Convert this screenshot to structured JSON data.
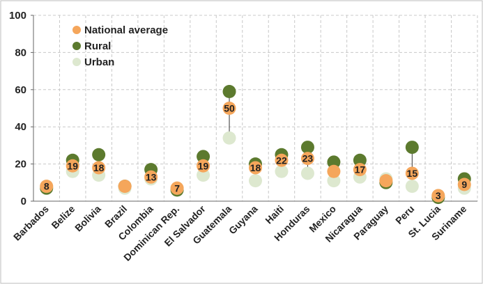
{
  "chart_data": {
    "type": "scatter",
    "categories": [
      "Barbados",
      "Belize",
      "Bolivia",
      "Brazil",
      "Colombia",
      "Dominican Rep.",
      "El Salvador",
      "Guatemala",
      "Guyana",
      "Haiti",
      "Honduras",
      "Mexico",
      "Nicaragua",
      "Paraguay",
      "Peru",
      "St. Lucia",
      "Suriname"
    ],
    "series": [
      {
        "name": "National average",
        "color": "#f5a65b",
        "values": [
          8,
          19,
          18,
          8,
          13,
          7,
          19,
          50,
          18,
          22,
          23,
          16,
          17,
          11,
          15,
          3,
          9
        ]
      },
      {
        "name": "Rural",
        "color": "#5c7a2e",
        "values": [
          7,
          22,
          25,
          8,
          17,
          6,
          24,
          59,
          20,
          25,
          29,
          21,
          22,
          10,
          29,
          2,
          12
        ]
      },
      {
        "name": "Urban",
        "color": "#dde8cf",
        "values": [
          8,
          16,
          14,
          7,
          12,
          7,
          14,
          34,
          11,
          16,
          15,
          11,
          13,
          12,
          8,
          3,
          7
        ]
      }
    ],
    "data_labels": [
      "8",
      "19",
      "18",
      "",
      "13",
      "7",
      "19",
      "50",
      "18",
      "22",
      "23",
      "",
      "17",
      "",
      "15",
      "3",
      "9"
    ],
    "yticks": [
      "0",
      "20",
      "40",
      "60",
      "80",
      "100"
    ],
    "ylim": [
      0,
      100
    ],
    "grid": true,
    "legend_position": "top-left"
  }
}
